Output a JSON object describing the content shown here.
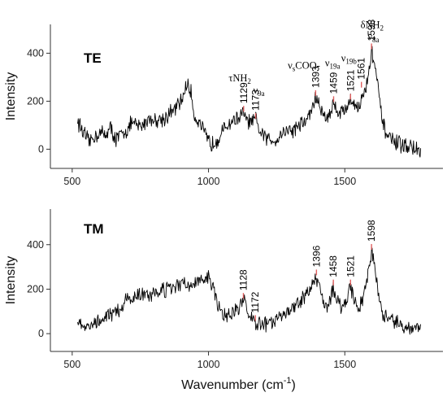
{
  "chart_data": [
    {
      "type": "line",
      "panel_label": "TE",
      "ylabel": "Intensity",
      "xlabel": "",
      "xlim": [
        420,
        1860
      ],
      "ylim": [
        -80,
        520
      ],
      "xticks": [
        "500",
        "1000",
        "1500"
      ],
      "yticks": [
        "0",
        "200",
        "400"
      ],
      "series": [
        {
          "x": [
            520,
            540,
            560,
            580,
            600,
            620,
            640,
            660,
            680,
            700,
            720,
            740,
            760,
            780,
            800,
            820,
            840,
            860,
            880,
            900,
            920,
            935,
            950,
            970,
            990,
            1010,
            1030,
            1050,
            1070,
            1090,
            1110,
            1129,
            1145,
            1160,
            1173,
            1190,
            1210,
            1230,
            1250,
            1270,
            1290,
            1310,
            1330,
            1350,
            1370,
            1393,
            1410,
            1430,
            1445,
            1459,
            1475,
            1490,
            1505,
            1521,
            1535,
            1550,
            1561,
            1575,
            1590,
            1598,
            1610,
            1625,
            1640,
            1660,
            1680,
            1700,
            1720,
            1740,
            1760,
            1780
          ],
          "y": [
            120,
            70,
            30,
            50,
            70,
            60,
            90,
            40,
            60,
            80,
            110,
            95,
            100,
            130,
            120,
            125,
            130,
            150,
            170,
            200,
            270,
            240,
            130,
            110,
            50,
            20,
            40,
            70,
            100,
            120,
            130,
            150,
            110,
            115,
            120,
            70,
            45,
            40,
            40,
            70,
            80,
            80,
            100,
            110,
            140,
            215,
            170,
            130,
            150,
            190,
            160,
            155,
            175,
            200,
            195,
            170,
            205,
            245,
            330,
            410,
            360,
            220,
            100,
            50,
            30,
            20,
            15,
            10,
            0,
            -20
          ]
        }
      ],
      "peak_labels": [
        {
          "x": 1129,
          "y": 150,
          "label": "1129"
        },
        {
          "x": 1173,
          "y": 120,
          "label": "1173"
        },
        {
          "x": 1393,
          "y": 215,
          "label": "1393"
        },
        {
          "x": 1459,
          "y": 190,
          "label": "1459"
        },
        {
          "x": 1521,
          "y": 200,
          "label": "1521"
        },
        {
          "x": 1561,
          "y": 250,
          "label": "1561"
        },
        {
          "x": 1598,
          "y": 410,
          "label": "1598"
        }
      ],
      "assignments": [
        {
          "text": "τNH",
          "sub": "2",
          "x": 1115,
          "y": 282
        },
        {
          "text": "ν",
          "sub": "9a",
          "x": 1185,
          "y": 232
        },
        {
          "text": "ν",
          "sub": "s",
          "text2": "COO-",
          "x": 1350,
          "y": 335
        },
        {
          "text": "ν",
          "sub": "19a",
          "x": 1455,
          "y": 345
        },
        {
          "text": "ν",
          "sub": "19b",
          "x": 1515,
          "y": 366
        },
        {
          "text": "δNH",
          "sub": "2",
          "x": 1600,
          "y": 505
        },
        {
          "text": "ν",
          "sub": "8a",
          "x": 1605,
          "y": 455
        }
      ]
    },
    {
      "type": "line",
      "panel_label": "TM",
      "ylabel": "Intensity",
      "xlabel": "Wavenumber (cm",
      "xlabel_sup": "-1",
      "xlabel_tail": ")",
      "xlim": [
        420,
        1860
      ],
      "ylim": [
        -80,
        560
      ],
      "xticks": [
        "500",
        "1000",
        "1500"
      ],
      "yticks": [
        "0",
        "200",
        "400"
      ],
      "series": [
        {
          "x": [
            520,
            540,
            560,
            580,
            600,
            620,
            640,
            660,
            680,
            700,
            720,
            740,
            760,
            780,
            800,
            820,
            840,
            860,
            880,
            900,
            920,
            940,
            960,
            980,
            1000,
            1010,
            1030,
            1050,
            1070,
            1090,
            1110,
            1128,
            1145,
            1160,
            1172,
            1190,
            1210,
            1230,
            1250,
            1270,
            1290,
            1310,
            1330,
            1350,
            1370,
            1396,
            1410,
            1430,
            1445,
            1458,
            1475,
            1490,
            1505,
            1521,
            1535,
            1550,
            1570,
            1585,
            1598,
            1610,
            1625,
            1640,
            1660,
            1680,
            1700,
            1720,
            1740,
            1760,
            1780
          ],
          "y": [
            60,
            40,
            20,
            50,
            70,
            80,
            90,
            100,
            110,
            150,
            160,
            170,
            180,
            175,
            180,
            190,
            195,
            200,
            210,
            220,
            220,
            225,
            230,
            240,
            250,
            230,
            150,
            90,
            75,
            95,
            120,
            150,
            100,
            70,
            50,
            40,
            40,
            50,
            60,
            80,
            100,
            120,
            140,
            170,
            200,
            255,
            190,
            120,
            150,
            210,
            150,
            110,
            150,
            210,
            160,
            110,
            170,
            270,
            370,
            300,
            160,
            90,
            60,
            50,
            40,
            30,
            25,
            30,
            35
          ]
        }
      ],
      "peak_labels": [
        {
          "x": 1128,
          "y": 150,
          "label": "1128"
        },
        {
          "x": 1172,
          "y": 50,
          "label": "1172"
        },
        {
          "x": 1396,
          "y": 255,
          "label": "1396"
        },
        {
          "x": 1458,
          "y": 210,
          "label": "1458"
        },
        {
          "x": 1521,
          "y": 210,
          "label": "1521"
        },
        {
          "x": 1598,
          "y": 370,
          "label": "1598"
        }
      ]
    }
  ]
}
